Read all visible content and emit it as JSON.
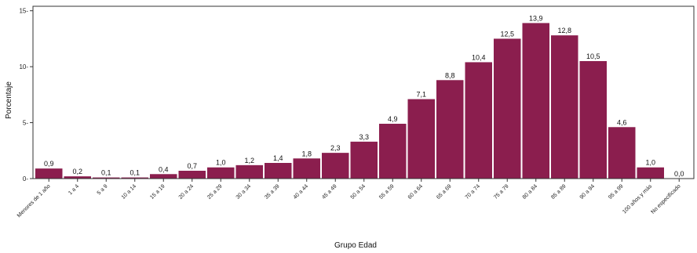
{
  "chart_data": {
    "type": "bar",
    "xlabel": "Grupo Edad",
    "ylabel": "Porcentaje",
    "ylim": [
      0,
      15.4
    ],
    "yticks": [
      0,
      5,
      10,
      15
    ],
    "grid": false,
    "bar_color": "#8b1e4e",
    "categories": [
      "Menores de 1 año",
      "1 a 4",
      "5 a 9",
      "10 a 14",
      "15 a 19",
      "20 a 24",
      "25 a 29",
      "30 a 34",
      "35 a 39",
      "40 a 44",
      "45 a 49",
      "50 a 54",
      "55 a 59",
      "60 a 64",
      "65 a 69",
      "70 a 74",
      "75 a 79",
      "80 a 84",
      "85 a 89",
      "90 a 94",
      "95 a 99",
      "100 años y más",
      "No especificado"
    ],
    "values": [
      0.9,
      0.2,
      0.1,
      0.1,
      0.4,
      0.7,
      1.0,
      1.2,
      1.4,
      1.8,
      2.3,
      3.3,
      4.9,
      7.1,
      8.8,
      10.4,
      12.5,
      13.9,
      12.8,
      10.5,
      4.6,
      1.0,
      0.0
    ],
    "value_labels": [
      "0,9",
      "0,2",
      "0,1",
      "0,1",
      "0,4",
      "0,7",
      "1,0",
      "1,2",
      "1,4",
      "1,8",
      "2,3",
      "3,3",
      "4,9",
      "7,1",
      "8,8",
      "10,4",
      "12,5",
      "13,9",
      "12,8",
      "10,5",
      "4,6",
      "1,0",
      "0,0"
    ]
  }
}
